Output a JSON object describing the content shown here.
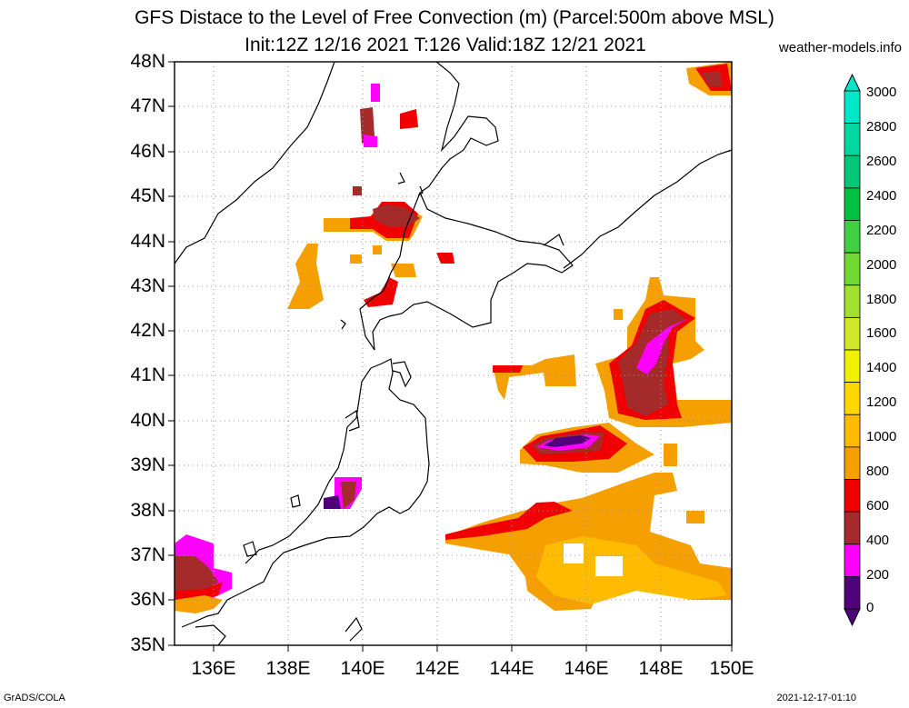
{
  "title_line1": "GFS Distace to the Level of Free Convection (m) (Parcel:500m above MSL)",
  "title_line2": "Init:12Z 12/16 2021 T:126 Valid:18Z 12/21 2021",
  "site": "weather-models.info",
  "lat_labels": [
    "48N",
    "47N",
    "46N",
    "45N",
    "44N",
    "43N",
    "42N",
    "41N",
    "40N",
    "39N",
    "38N",
    "37N",
    "36N",
    "35N"
  ],
  "lon_labels": [
    "136E",
    "138E",
    "140E",
    "142E",
    "144E",
    "146E",
    "148E",
    "150E"
  ],
  "colorbar": {
    "labels": [
      "3000",
      "2800",
      "2600",
      "2400",
      "2200",
      "2000",
      "1800",
      "1600",
      "1400",
      "1200",
      "1000",
      "800",
      "600",
      "400",
      "200",
      "0"
    ],
    "colors": [
      "#00e6c8",
      "#00d8a0",
      "#00c878",
      "#00c040",
      "#40d040",
      "#70d830",
      "#a0e030",
      "#d0e828",
      "#f0f000",
      "#ffd700",
      "#ffbb00",
      "#f5a000",
      "#f00000",
      "#a52a2a",
      "#ff00ff",
      "#50007a"
    ]
  },
  "footer_left": "GrADS/COLA",
  "footer_right": "2021-12-17-01:10"
}
